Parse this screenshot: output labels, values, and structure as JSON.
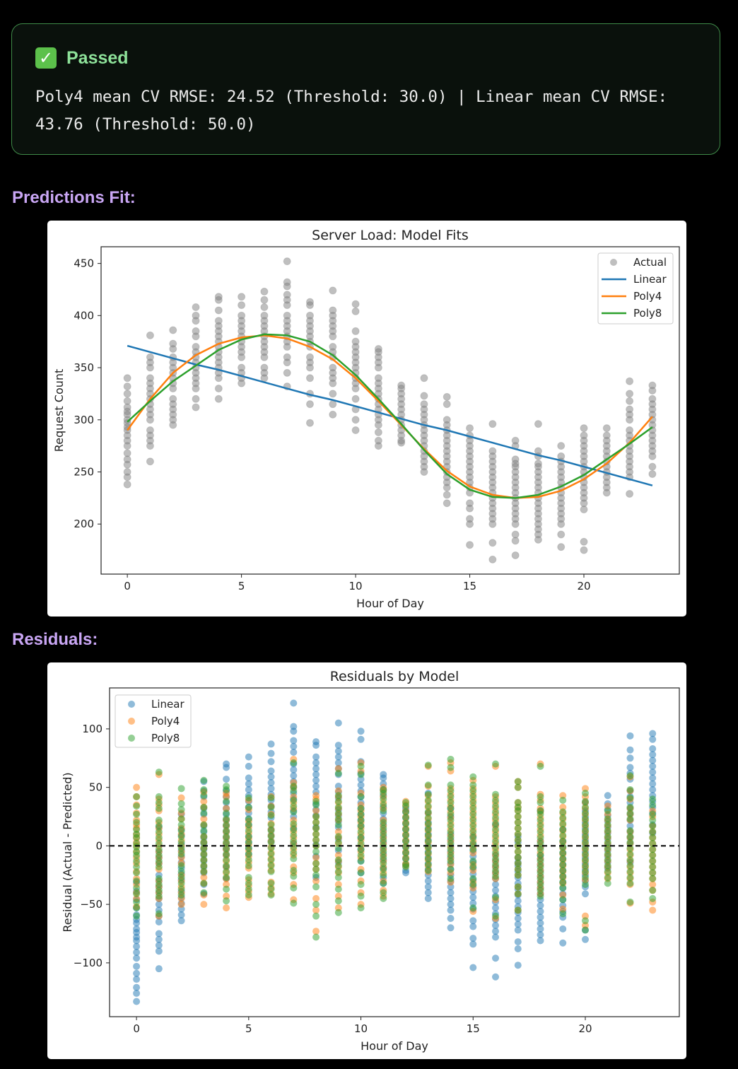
{
  "status": {
    "icon": "check-mark-icon",
    "label": "Passed",
    "message": "Poly4 mean CV RMSE: 24.52 (Threshold: 30.0) | Linear mean CV RMSE: 43.76 (Threshold: 50.0)",
    "accent": "#8ee29a"
  },
  "sections": {
    "predictions": "Predictions Fit:",
    "residuals": "Residuals:"
  },
  "chart_data": [
    {
      "type": "scatter",
      "title": "Server Load: Model Fits",
      "xlabel": "Hour of Day",
      "ylabel": "Request Count",
      "xlim": [
        -1.15,
        24.18
      ],
      "ylim": [
        152,
        466
      ],
      "xticks": [
        0,
        5,
        10,
        15,
        20
      ],
      "yticks": [
        200,
        250,
        300,
        350,
        400,
        450
      ],
      "legend": "top-right",
      "grid": false,
      "hours": [
        0,
        1,
        2,
        3,
        4,
        5,
        6,
        7,
        8,
        9,
        10,
        11,
        12,
        13,
        14,
        15,
        16,
        17,
        18,
        19,
        20,
        21,
        22,
        23
      ],
      "actual": {
        "name": "Actual",
        "color": "#808080",
        "values_by_hour": [
          [
            340,
            332,
            325,
            318,
            312,
            308,
            305,
            300,
            297,
            293,
            290,
            285,
            280,
            275,
            268,
            262,
            257,
            250,
            245,
            238
          ],
          [
            381,
            360,
            355,
            350,
            340,
            335,
            330,
            325,
            320,
            315,
            310,
            305,
            300,
            290,
            285,
            280,
            275,
            260
          ],
          [
            386,
            373,
            368,
            360,
            355,
            350,
            345,
            340,
            335,
            330,
            320,
            315,
            310,
            305,
            300,
            295
          ],
          [
            408,
            400,
            395,
            385,
            380,
            370,
            365,
            360,
            355,
            350,
            345,
            340,
            335,
            330,
            320,
            312
          ],
          [
            418,
            415,
            405,
            395,
            390,
            385,
            380,
            375,
            370,
            365,
            360,
            355,
            350,
            345,
            340,
            330,
            320
          ],
          [
            418,
            410,
            400,
            395,
            390,
            385,
            380,
            375,
            370,
            365,
            360,
            350,
            345,
            340,
            335
          ],
          [
            423,
            415,
            408,
            400,
            395,
            390,
            385,
            380,
            375,
            370,
            365,
            360,
            350,
            345,
            340
          ],
          [
            452,
            432,
            428,
            420,
            415,
            410,
            400,
            395,
            390,
            385,
            380,
            375,
            370,
            360,
            355,
            345,
            332
          ],
          [
            413,
            410,
            400,
            395,
            390,
            385,
            380,
            375,
            370,
            360,
            355,
            350,
            340,
            325,
            315,
            297
          ],
          [
            424,
            405,
            400,
            395,
            390,
            385,
            380,
            370,
            365,
            360,
            350,
            345,
            340,
            335,
            325,
            315,
            305
          ],
          [
            411,
            404,
            385,
            375,
            370,
            365,
            360,
            355,
            350,
            345,
            340,
            335,
            330,
            320,
            310,
            300,
            290
          ],
          [
            368,
            365,
            360,
            355,
            350,
            340,
            335,
            330,
            325,
            320,
            315,
            310,
            305,
            300,
            295,
            288,
            280,
            275
          ],
          [
            333,
            330,
            325,
            320,
            315,
            310,
            305,
            300,
            295,
            290,
            285,
            280,
            278
          ],
          [
            340,
            323,
            315,
            310,
            305,
            300,
            295,
            290,
            285,
            280,
            275,
            270,
            265,
            260,
            255,
            250
          ],
          [
            322,
            315,
            300,
            295,
            290,
            285,
            280,
            275,
            270,
            265,
            260,
            255,
            250,
            245,
            240,
            235,
            228,
            220
          ],
          [
            292,
            285,
            280,
            275,
            270,
            265,
            260,
            255,
            250,
            245,
            240,
            235,
            230,
            220,
            215,
            205,
            200,
            180
          ],
          [
            296,
            270,
            265,
            260,
            255,
            250,
            245,
            240,
            235,
            230,
            225,
            220,
            215,
            210,
            205,
            200,
            182,
            166
          ],
          [
            280,
            275,
            262,
            258,
            255,
            250,
            245,
            240,
            235,
            230,
            225,
            220,
            215,
            210,
            205,
            200,
            190,
            184,
            170
          ],
          [
            296,
            270,
            265,
            258,
            255,
            250,
            245,
            240,
            235,
            230,
            225,
            220,
            215,
            210,
            205,
            200,
            195,
            190,
            185
          ],
          [
            275,
            265,
            260,
            255,
            250,
            245,
            240,
            235,
            230,
            225,
            220,
            215,
            210,
            205,
            200,
            190,
            178
          ],
          [
            292,
            285,
            280,
            275,
            270,
            265,
            260,
            255,
            250,
            245,
            240,
            235,
            230,
            225,
            220,
            214,
            183,
            175
          ],
          [
            292,
            285,
            280,
            275,
            270,
            265,
            260,
            255,
            250,
            245,
            240,
            235,
            230
          ],
          [
            337,
            325,
            318,
            310,
            305,
            300,
            290,
            285,
            280,
            275,
            270,
            265,
            260,
            255,
            250,
            245,
            229
          ],
          [
            333,
            328,
            320,
            315,
            310,
            305,
            300,
            295,
            290,
            285,
            280,
            275,
            270,
            265,
            255,
            248
          ]
        ]
      },
      "series": [
        {
          "name": "Linear",
          "color": "#1f77b4",
          "values": [
            371,
            365,
            359,
            353,
            348,
            342,
            336,
            330,
            324,
            319,
            313,
            307,
            301,
            295,
            290,
            284,
            278,
            272,
            266,
            261,
            255,
            249,
            243,
            237
          ]
        },
        {
          "name": "Poly4",
          "color": "#ff7f0e",
          "values": [
            290,
            320,
            345,
            362,
            373,
            379,
            381,
            378,
            370,
            358,
            340,
            318,
            295,
            272,
            251,
            236,
            228,
            225,
            226,
            232,
            243,
            258,
            278,
            303
          ]
        },
        {
          "name": "Poly8",
          "color": "#2ca02c",
          "values": [
            298,
            318,
            337,
            352,
            367,
            377,
            382,
            381,
            375,
            362,
            343,
            320,
            296,
            271,
            248,
            233,
            226,
            225,
            228,
            236,
            247,
            262,
            277,
            293
          ]
        }
      ]
    },
    {
      "type": "scatter",
      "title": "Residuals by Model",
      "xlabel": "Hour of Day",
      "ylabel": "Residual (Actual - Predicted)",
      "xlim": [
        -1.2,
        24.19
      ],
      "ylim": [
        -146,
        135
      ],
      "xticks": [
        0,
        5,
        10,
        15,
        20
      ],
      "yticks": [
        -100,
        -50,
        0,
        50,
        100
      ],
      "ytick_labels": [
        "−100",
        "−50",
        "0",
        "50",
        "100"
      ],
      "legend": "top-left",
      "grid": false,
      "reference_line": 0,
      "series": [
        {
          "name": "Linear",
          "color": "#1f77b4"
        },
        {
          "name": "Poly4",
          "color": "#ff7f0e"
        },
        {
          "name": "Poly8",
          "color": "#2ca02c"
        }
      ]
    }
  ]
}
